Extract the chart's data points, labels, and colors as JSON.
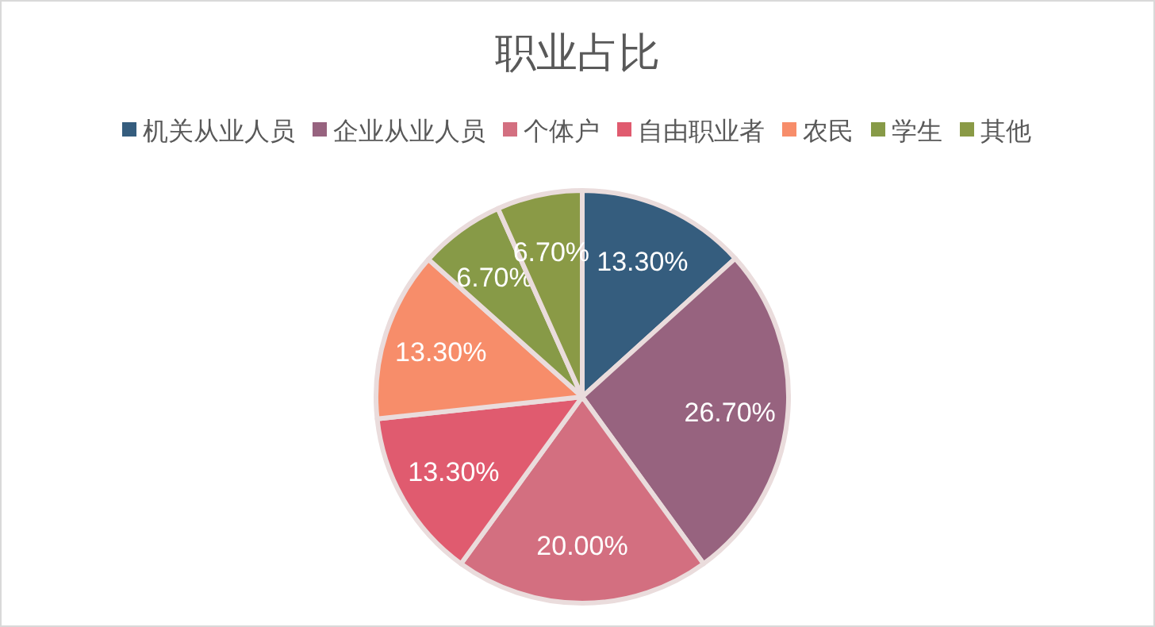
{
  "chart_data": {
    "type": "pie",
    "title": "职业占比",
    "legend": "top",
    "categories": [
      "机关从业人员",
      "企业从业人员",
      "个体户",
      "自由职业者",
      "农民",
      "学生",
      "其他"
    ],
    "values": [
      13.3,
      26.7,
      20.0,
      13.3,
      13.3,
      6.7,
      6.7
    ],
    "value_labels": [
      "13.30%",
      "26.70%",
      "20.00%",
      "13.30%",
      "13.30%",
      "6.70%",
      "6.70%"
    ],
    "colors": [
      "#355d7e",
      "#97637f",
      "#d36f80",
      "#e05b6f",
      "#f78d6a",
      "#879a47",
      "#8a9a46"
    ]
  }
}
